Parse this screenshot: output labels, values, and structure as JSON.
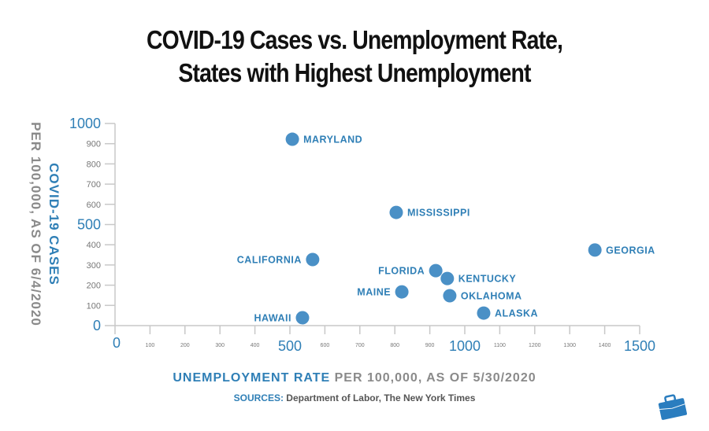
{
  "title_lines": [
    "COVID-19 Cases vs. Unemployment Rate,",
    "States with Highest Unemployment"
  ],
  "y_axis": {
    "label_main": "COVID-19 CASES",
    "label_sub": "PER 100,000, AS OF 6/4/2020"
  },
  "x_axis": {
    "label_main": "UNEMPLOYMENT RATE",
    "label_sub": " PER 100,000, AS OF 5/30/2020"
  },
  "sources": {
    "label": "SOURCES:",
    "text": " Department of Labor, The New York Times"
  },
  "colors": {
    "point": "#4a90c6",
    "label": "#2f7fb6",
    "axis": "#c8c8c8",
    "tick_text": "#777777"
  },
  "chart_data": {
    "type": "scatter",
    "title": "COVID-19 Cases vs. Unemployment Rate, States with Highest Unemployment",
    "xlabel": "UNEMPLOYMENT RATE PER 100,000, AS OF 5/30/2020",
    "ylabel": "COVID-19 CASES PER 100,000, AS OF 6/4/2020",
    "xlim": [
      0,
      1500
    ],
    "ylim": [
      0,
      1000
    ],
    "x_ticks_major": [
      "0",
      "500",
      "1000",
      "1500"
    ],
    "x_ticks_minor": [
      "100",
      "200",
      "300",
      "400",
      "600",
      "700",
      "800",
      "900",
      "1100",
      "1200",
      "1300",
      "1400"
    ],
    "y_ticks_major": [
      "0",
      "500",
      "1000"
    ],
    "y_ticks_minor": [
      "100",
      "200",
      "300",
      "400",
      "600",
      "700",
      "800",
      "900"
    ],
    "grid": false,
    "points": [
      {
        "label": "MARYLAND",
        "x": 507,
        "y": 922,
        "side": "right"
      },
      {
        "label": "MISSISSIPPI",
        "x": 804,
        "y": 560,
        "side": "right"
      },
      {
        "label": "GEORGIA",
        "x": 1372,
        "y": 374,
        "side": "right"
      },
      {
        "label": "CALIFORNIA",
        "x": 565,
        "y": 327,
        "side": "left"
      },
      {
        "label": "FLORIDA",
        "x": 917,
        "y": 272,
        "side": "left"
      },
      {
        "label": "KENTUCKY",
        "x": 950,
        "y": 233,
        "side": "right"
      },
      {
        "label": "MAINE",
        "x": 820,
        "y": 167,
        "side": "left"
      },
      {
        "label": "OKLAHOMA",
        "x": 957,
        "y": 148,
        "side": "right"
      },
      {
        "label": "ALASKA",
        "x": 1054,
        "y": 62,
        "side": "right"
      },
      {
        "label": "HAWAII",
        "x": 536,
        "y": 39,
        "side": "left"
      }
    ]
  }
}
